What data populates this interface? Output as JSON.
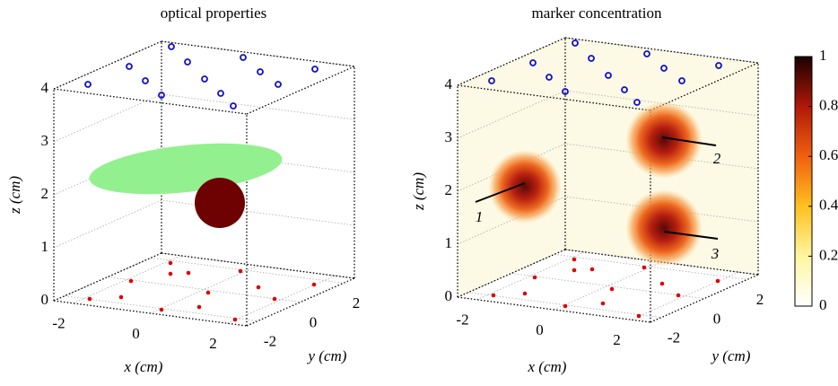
{
  "chart_data": [
    {
      "type": "scatter3d",
      "title": "optical properties",
      "xlabel": "x (cm)",
      "ylabel": "y (cm)",
      "zlabel": "z (cm)",
      "xlim": [
        -2.5,
        2.5
      ],
      "ylim": [
        -2.5,
        2.5
      ],
      "zlim": [
        0,
        4
      ],
      "xticks": [
        -2,
        0,
        2
      ],
      "yticks": [
        -2,
        0,
        2
      ],
      "zticks": [
        0,
        1,
        2,
        3,
        4
      ],
      "grid": true
    },
    {
      "type": "scatter3d",
      "title": "marker concentration",
      "xlabel": "x (cm)",
      "ylabel": "y (cm)",
      "zlabel": "z (cm)",
      "xlim": [
        -2.5,
        2.5
      ],
      "ylim": [
        -2.5,
        2.5
      ],
      "zlim": [
        0,
        4
      ],
      "xticks": [
        -2,
        0,
        2
      ],
      "yticks": [
        -2,
        0,
        2
      ],
      "zticks": [
        0,
        1,
        2,
        3,
        4
      ],
      "grid": true,
      "annotations": [
        "1",
        "2",
        "3"
      ],
      "colorbar": {
        "lim": [
          0,
          1
        ],
        "ticks": [
          0,
          0.2,
          0.4,
          0.6,
          0.8,
          1
        ]
      }
    }
  ]
}
